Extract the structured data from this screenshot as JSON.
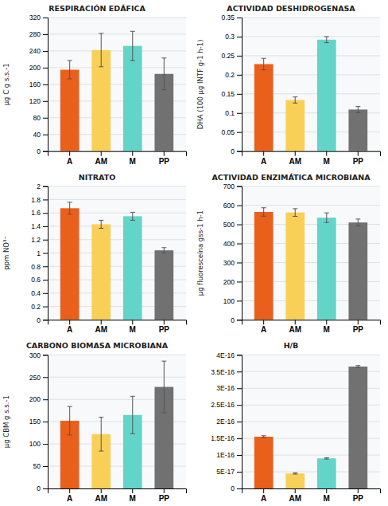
{
  "chart_data": [
    {
      "type": "bar",
      "title": "RESPIRACIÓN EDÁFICA",
      "ylabel": "µg C g s.s.-1",
      "categories": [
        "A",
        "AM",
        "M",
        "PP"
      ],
      "values": [
        195,
        242,
        252,
        185
      ],
      "errors": [
        22,
        40,
        35,
        38
      ],
      "colors": [
        "#E8601C",
        "#F9D057",
        "#63D5C8",
        "#717171"
      ],
      "ylim": [
        0,
        320
      ],
      "yticks": [
        0,
        40,
        80,
        120,
        160,
        200,
        240,
        280,
        320
      ],
      "grid": true
    },
    {
      "type": "bar",
      "title": "ACTIVIDAD DESHIDROGENASA",
      "ylabel": "DHA (100 µg INTF g-1 h-1)",
      "categories": [
        "A",
        "AM",
        "M",
        "PP"
      ],
      "values": [
        0.228,
        0.134,
        0.292,
        0.109
      ],
      "errors": [
        0.015,
        0.008,
        0.008,
        0.008
      ],
      "colors": [
        "#E8601C",
        "#F9D057",
        "#63D5C8",
        "#717171"
      ],
      "ylim": [
        0,
        0.35
      ],
      "yticks": [
        0,
        0.05,
        0.1,
        0.15,
        0.2,
        0.25,
        0.3,
        0.35
      ],
      "grid": true
    },
    {
      "type": "bar",
      "title": "NITRATO",
      "ylabel": "ppm NO³⁻",
      "categories": [
        "A",
        "AM",
        "M",
        "PP"
      ],
      "values": [
        1.67,
        1.43,
        1.55,
        1.04
      ],
      "errors": [
        0.09,
        0.06,
        0.06,
        0.04
      ],
      "colors": [
        "#E8601C",
        "#F9D057",
        "#63D5C8",
        "#717171"
      ],
      "ylim": [
        0,
        2
      ],
      "yticks": [
        0,
        0.2,
        0.4,
        0.6,
        0.8,
        1,
        1.2,
        1.4,
        1.6,
        1.8,
        2
      ],
      "grid": true
    },
    {
      "type": "bar",
      "title": "ACTIVIDAD ENZIMÁTICA MICROBIANA",
      "ylabel": "µg fluoresceína gss-1 h-1",
      "categories": [
        "A",
        "AM",
        "M",
        "PP"
      ],
      "values": [
        565,
        562,
        535,
        510
      ],
      "errors": [
        22,
        20,
        25,
        18
      ],
      "colors": [
        "#E8601C",
        "#F9D057",
        "#63D5C8",
        "#717171"
      ],
      "ylim": [
        0,
        700
      ],
      "yticks": [
        0,
        100,
        200,
        300,
        400,
        500,
        600,
        700
      ],
      "grid": true
    },
    {
      "type": "bar",
      "title": "CARBONO BIOMASA MICROBIANA",
      "ylabel": "µg CBM g s.s.-1",
      "categories": [
        "A",
        "AM",
        "M",
        "PP"
      ],
      "values": [
        152,
        122,
        165,
        228
      ],
      "errors": [
        32,
        38,
        42,
        58
      ],
      "colors": [
        "#E8601C",
        "#F9D057",
        "#63D5C8",
        "#717171"
      ],
      "ylim": [
        0,
        300
      ],
      "yticks": [
        0,
        50,
        100,
        150,
        200,
        250,
        300
      ],
      "grid": true
    },
    {
      "type": "bar",
      "title": "H/B",
      "categories": [
        "A",
        "AM",
        "M",
        "PP"
      ],
      "values": [
        1.55e-16,
        4.5e-17,
        9e-17,
        3.65e-16
      ],
      "errors": [
        3e-18,
        2e-18,
        2e-18,
        3e-18
      ],
      "colors": [
        "#E8601C",
        "#F9D057",
        "#63D5C8",
        "#717171"
      ],
      "ylim": [
        0,
        4e-16
      ],
      "yticks": [
        0,
        {
          "value": 5e-17,
          "label": "5E-17"
        },
        {
          "value": 1e-16,
          "label": "1E-16"
        },
        {
          "value": 1.5e-16,
          "label": "1.5E-16"
        },
        {
          "value": 2e-16,
          "label": "2E-16"
        },
        {
          "value": 2.5e-16,
          "label": "2.5E-16"
        },
        {
          "value": 3e-16,
          "label": "3E-16"
        },
        {
          "value": 3.5e-16,
          "label": "3.5E-16"
        },
        {
          "value": 4e-16,
          "label": "4E-16"
        }
      ],
      "grid": true
    }
  ]
}
